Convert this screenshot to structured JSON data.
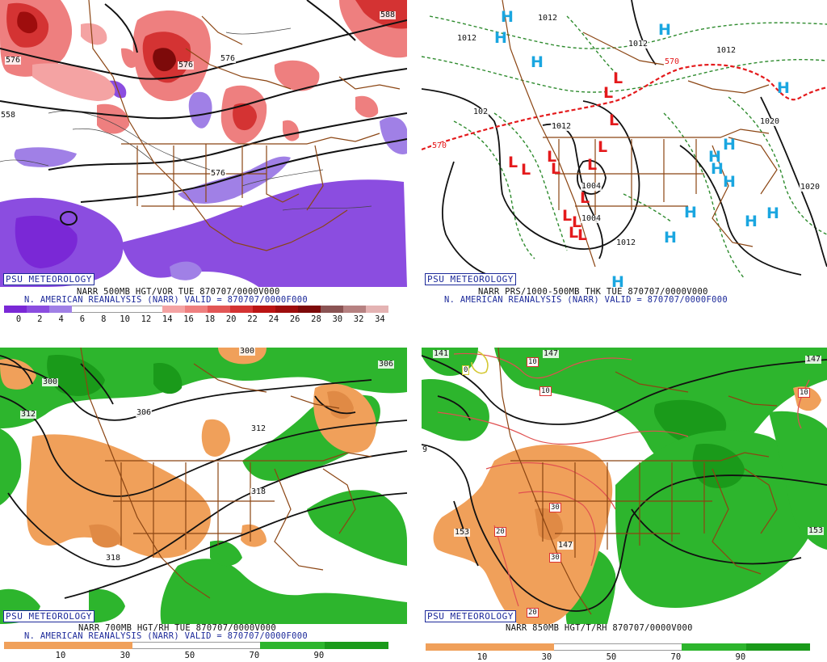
{
  "panels": {
    "tl": {
      "psu": "PSU METEOROLOGY",
      "title": "NARR 500MB HGT/VOR TUE 870707/0000V000",
      "subtitle": "N. AMERICAN REANALYSIS (NARR) VALID = 870707/0000F000",
      "ticks": [
        "0",
        "2",
        "4",
        "6",
        "8",
        "10",
        "12",
        "14",
        "16",
        "18",
        "20",
        "22",
        "24",
        "26",
        "28",
        "30",
        "32",
        "34"
      ],
      "colorbar": [
        "#7a28d6",
        "#8b4de0",
        "#a080e6",
        "#ffffff",
        "#ffffff",
        "#ffffff",
        "#ffffff",
        "#f4a3a3",
        "#ee7f7f",
        "#e25656",
        "#d43333",
        "#bb1414",
        "#9e0d0d",
        "#7d0a0a",
        "#8a5353",
        "#b68181",
        "#e4b3b3"
      ],
      "contour_labels": [
        "576",
        "576",
        "576",
        "588",
        "558",
        "576"
      ]
    },
    "tr": {
      "psu": "PSU METEOROLOGY",
      "title": "NARR PRS/1000-500MB THK TUE 870707/0000V000",
      "subtitle": "N. AMERICAN REANALYSIS (NARR) VALID = 870707/0000F000",
      "contour_labels": [
        "1012",
        "1012",
        "1012",
        "1012",
        "1020",
        "1020",
        "570",
        "570",
        "1004",
        "1004",
        "1012",
        "1012",
        "102"
      ],
      "highs": [
        "H",
        "H",
        "H",
        "H",
        "H",
        "H",
        "H",
        "H",
        "H",
        "H",
        "H",
        "H",
        "H",
        "H"
      ],
      "lows": [
        "L",
        "L",
        "L",
        "L",
        "L",
        "L",
        "L",
        "L",
        "L",
        "L",
        "L",
        "L",
        "L",
        "L"
      ]
    },
    "bl": {
      "psu": "PSU METEOROLOGY",
      "title": "NARR 700MB HGT/RH TUE 870707/0000V000",
      "subtitle": "N. AMERICAN REANALYSIS (NARR) VALID = 870707/0000F000",
      "ticks": [
        "10",
        "30",
        "50",
        "70",
        "90"
      ],
      "colorbar": [
        "#f0a05a",
        "#f0a05a",
        "#ffffff",
        "#ffffff",
        "#2db52d",
        "#1a9a1a"
      ],
      "contour_labels": [
        "300",
        "300",
        "306",
        "306",
        "312",
        "312",
        "318",
        "318"
      ]
    },
    "br": {
      "psu": "PSU METEOROLOGY",
      "title": "NARR 850MB HGT/T/RH 870707/0000V000",
      "ticks": [
        "10",
        "30",
        "50",
        "70",
        "90"
      ],
      "colorbar": [
        "#f0a05a",
        "#f0a05a",
        "#ffffff",
        "#ffffff",
        "#2db52d",
        "#1a9a1a"
      ],
      "contour_labels": [
        "141",
        "147",
        "147",
        "153",
        "153",
        "147",
        "9"
      ],
      "temp_labels": [
        "0",
        "10",
        "10",
        "10",
        "20",
        "30",
        "30",
        "20"
      ]
    }
  },
  "colors": {
    "border": "#8b4513",
    "contour": "#111111",
    "dashed_green": "#2e8b2e",
    "thickness_red": "#e41a1c",
    "rh_dry": "#f0a05a",
    "rh_moist": "#2db52d",
    "vort_pos": "#e25656",
    "vort_neg": "#8b4de0",
    "caption_blue": "#1d2a9a"
  }
}
